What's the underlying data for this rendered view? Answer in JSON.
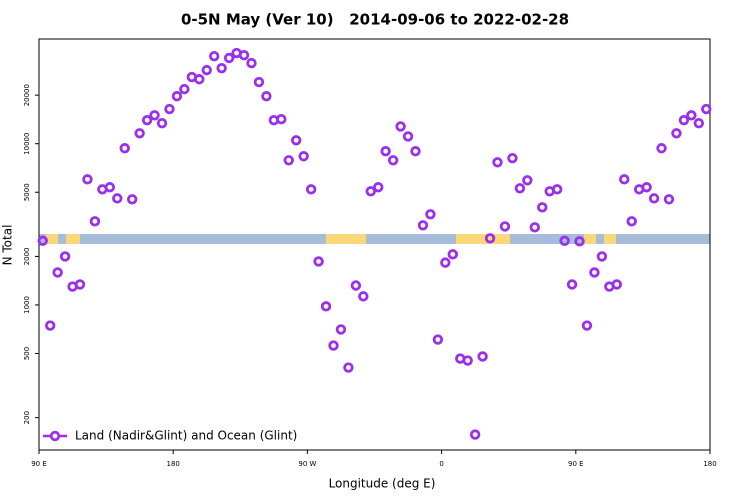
{
  "chart_data": {
    "type": "scatter",
    "title": "0-5N May (Ver 10)   2014-09-06 to 2022-02-28",
    "x_label": "Longitude (deg E)",
    "y_label": "N Total",
    "y_log": true,
    "legend_corner": "lower left",
    "xlim": [
      90,
      540
    ],
    "xticks": [
      {
        "value": 90,
        "label": "90 E"
      },
      {
        "value": 180,
        "label": "180"
      },
      {
        "value": 270,
        "label": "90 W"
      },
      {
        "value": 360,
        "label": "0"
      },
      {
        "value": 450,
        "label": "90 E"
      },
      {
        "value": 540,
        "label": "180"
      }
    ],
    "ylim": [
      126,
      44600
    ],
    "yticks": [
      200,
      500,
      1000,
      2000,
      5000,
      10000,
      20000
    ],
    "series": [
      {
        "name": "Land (Nadir&Glint) and Ocean (Glint)",
        "color": "#9b2ff0",
        "x": [
          92.5,
          97.5,
          102.5,
          107.5,
          112.5,
          117.5,
          122.5,
          127.5,
          132.5,
          137.5,
          142.5,
          147.5,
          152.5,
          157.5,
          162.5,
          167.5,
          172.5,
          177.5,
          182.5,
          187.5,
          192.5,
          197.5,
          202.5,
          207.5,
          212.5,
          217.5,
          222.5,
          227.5,
          232.5,
          237.5,
          242.5,
          247.5,
          252.5,
          257.5,
          262.5,
          267.5,
          272.5,
          277.5,
          282.5,
          287.5,
          292.5,
          297.5,
          302.5,
          307.5,
          312.5,
          317.5,
          322.5,
          327.5,
          332.5,
          337.5,
          342.5,
          347.5,
          352.5,
          357.5,
          362.5,
          367.5,
          372.5,
          377.5,
          382.5,
          387.5,
          392.5,
          397.5,
          402.5,
          407.5,
          412.5,
          417.5,
          422.5,
          427.5,
          432.5,
          437.5,
          442.5,
          447.5,
          452.5,
          457.5,
          462.5,
          467.5,
          472.5,
          477.5,
          482.5,
          487.5,
          492.5,
          497.5,
          502.5,
          507.5,
          512.5,
          517.5,
          522.5,
          527.5,
          532.5,
          537.5
        ],
        "values": [
          2500,
          745,
          1590,
          2000,
          1300,
          1340,
          6010,
          3300,
          5210,
          5370,
          4580,
          9370,
          4520,
          11600,
          14000,
          15000,
          13400,
          16400,
          19700,
          21800,
          25900,
          25100,
          28600,
          34900,
          29400,
          34000,
          36500,
          35400,
          31600,
          24100,
          19700,
          14000,
          14200,
          7890,
          10500,
          8360,
          5210,
          1860,
          980,
          560,
          705,
          409,
          1320,
          1130,
          5070,
          5370,
          8980,
          7890,
          12800,
          11100,
          8980,
          3120,
          3650,
          610,
          1830,
          2060,
          465,
          452,
          157,
          479,
          2590,
          7670,
          3070,
          8130,
          5290,
          5930,
          3030,
          4030,
          5070,
          5210,
          2500,
          1340,
          2480,
          745,
          1590,
          2000,
          1300,
          1340,
          6010,
          3300,
          5210,
          5370,
          4580,
          9370,
          4520,
          11600,
          14000,
          15000,
          13400,
          16400
        ]
      }
    ]
  }
}
